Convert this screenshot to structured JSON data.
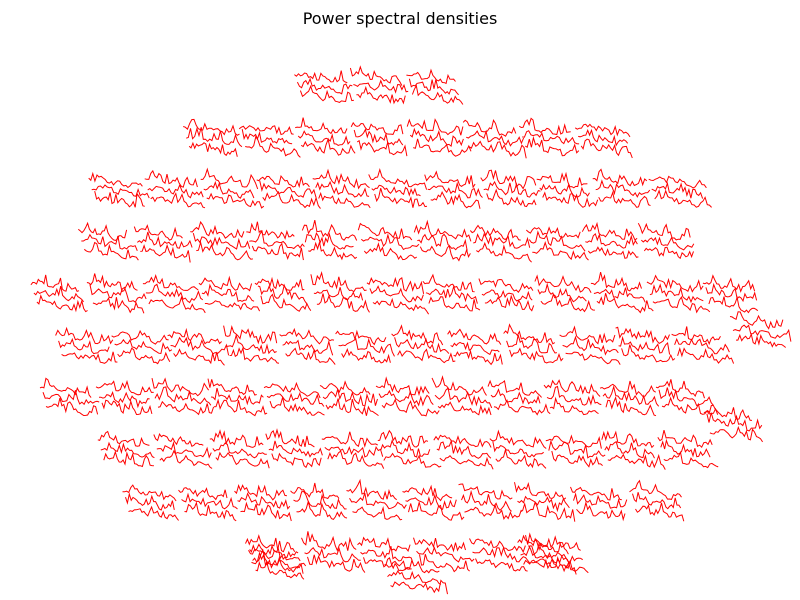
{
  "chart_data": {
    "type": "line",
    "title": "Power spectral densities",
    "xlabel": "",
    "ylabel": "",
    "grid": false,
    "legend": "none",
    "line_color": "#ff0000",
    "layout_style": "sensor topography — one small PSD trace per sensor, no axes or tick labels",
    "sensor_count": 306,
    "colors": {
      "background": "#ffffff",
      "title": "#000000",
      "trace": "#ff0000"
    }
  }
}
